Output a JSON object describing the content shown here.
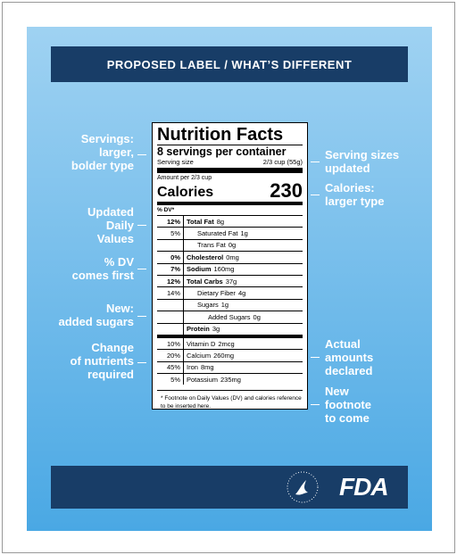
{
  "header": {
    "title": "PROPOSED LABEL / WHAT’S DIFFERENT"
  },
  "left_notes": [
    {
      "lines": [
        "Servings:",
        "larger,",
        "bolder type"
      ]
    },
    {
      "lines": [
        "Updated",
        "Daily",
        "Values"
      ]
    },
    {
      "lines": [
        "% DV",
        "comes first"
      ]
    },
    {
      "lines": [
        "New:",
        "added sugars"
      ]
    },
    {
      "lines": [
        "Change",
        "of nutrients",
        "required"
      ]
    }
  ],
  "right_notes": [
    {
      "lines": [
        "Serving sizes",
        "updated"
      ]
    },
    {
      "lines": [
        "Calories:",
        "larger type"
      ]
    },
    {
      "lines": [
        "Actual",
        "amounts",
        "declared"
      ]
    },
    {
      "lines": [
        "New",
        "footnote",
        "to come"
      ]
    }
  ],
  "label": {
    "title": "Nutrition Facts",
    "servings": "8 servings per container",
    "serving_size_label": "Serving size",
    "serving_size_value": "2/3 cup (55g)",
    "amount_per": "Amount per 2/3 cup",
    "calories_label": "Calories",
    "calories_value": 230,
    "dv_header": "% DV*",
    "rows": [
      {
        "dv": "12%",
        "name": "Total Fat",
        "amount": "8g"
      },
      {
        "dv": "5%",
        "name": "Saturated Fat",
        "amount": "1g"
      },
      {
        "name": "Trans Fat",
        "amount": "0g"
      },
      {
        "dv": "0%",
        "name": "Cholesterol",
        "amount": "0mg"
      },
      {
        "dv": "7%",
        "name": "Sodium",
        "amount": "160mg"
      },
      {
        "dv": "12%",
        "name": "Total Carbs",
        "amount": "37g"
      },
      {
        "dv": "14%",
        "name": "Dietary Fiber",
        "amount": "4g"
      },
      {
        "name": "Sugars",
        "amount": "1g"
      },
      {
        "name": "Added Sugars",
        "amount": "0g"
      },
      {
        "name": "Protein",
        "amount": "3g"
      }
    ],
    "vitamins": [
      {
        "dv": "10%",
        "name": "Vitamin D",
        "amount": "2mcg"
      },
      {
        "dv": "20%",
        "name": "Calcium",
        "amount": "260mg"
      },
      {
        "dv": "45%",
        "name": "Iron",
        "amount": "8mg"
      },
      {
        "dv": "5%",
        "name": "Potassium",
        "amount": "235mg"
      }
    ],
    "footnote": "* Footnote on Daily Values (DV) and calories reference to be inserted here."
  },
  "footer": {
    "logo": "FDA"
  }
}
